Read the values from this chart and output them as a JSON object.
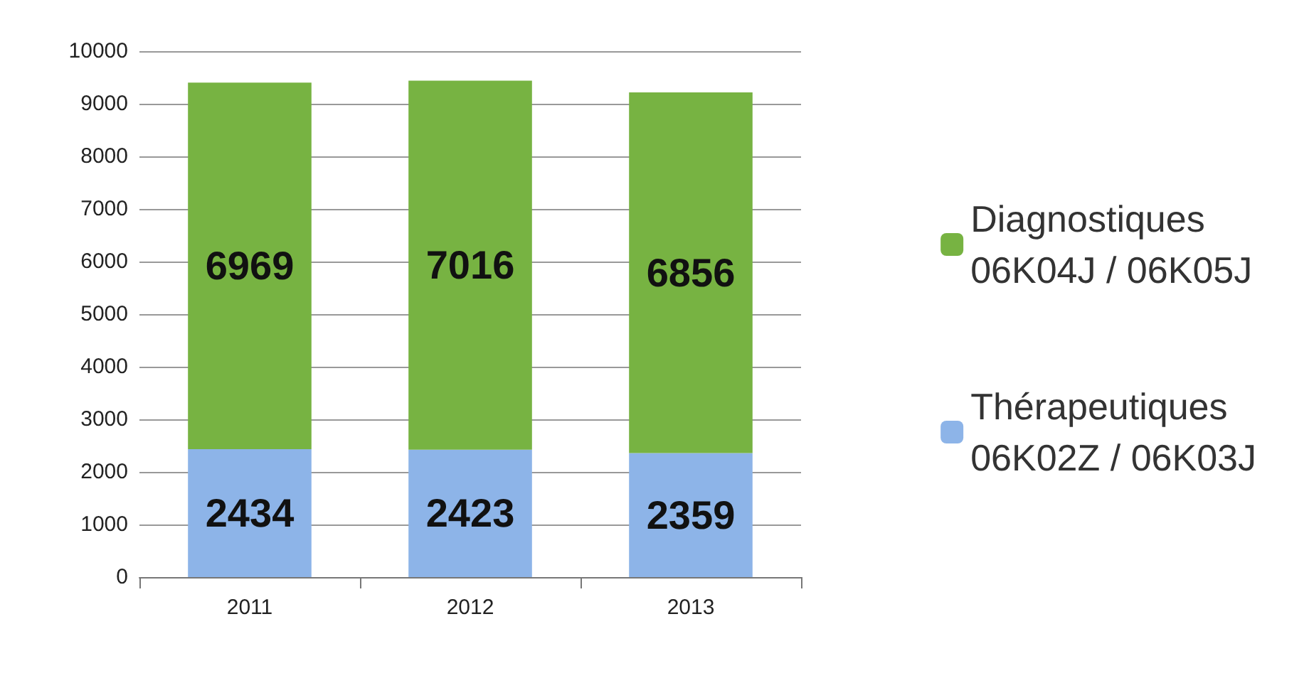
{
  "chart_data": {
    "type": "bar",
    "stacked": true,
    "categories": [
      "2011",
      "2012",
      "2013"
    ],
    "series": [
      {
        "name": "Thérapeutiques\n06K02Z / 06K03J",
        "color": "#8db4e8",
        "values": [
          2434,
          2423,
          2359
        ]
      },
      {
        "name": "Diagnostiques\n06K04J / 06K05J",
        "color": "#77b342",
        "values": [
          6969,
          7016,
          6856
        ]
      }
    ],
    "ylim": [
      0,
      10000
    ],
    "yticks": [
      0,
      1000,
      2000,
      3000,
      4000,
      5000,
      6000,
      7000,
      8000,
      9000,
      10000
    ],
    "grid": "y",
    "legend": "right",
    "data_labels": true
  }
}
